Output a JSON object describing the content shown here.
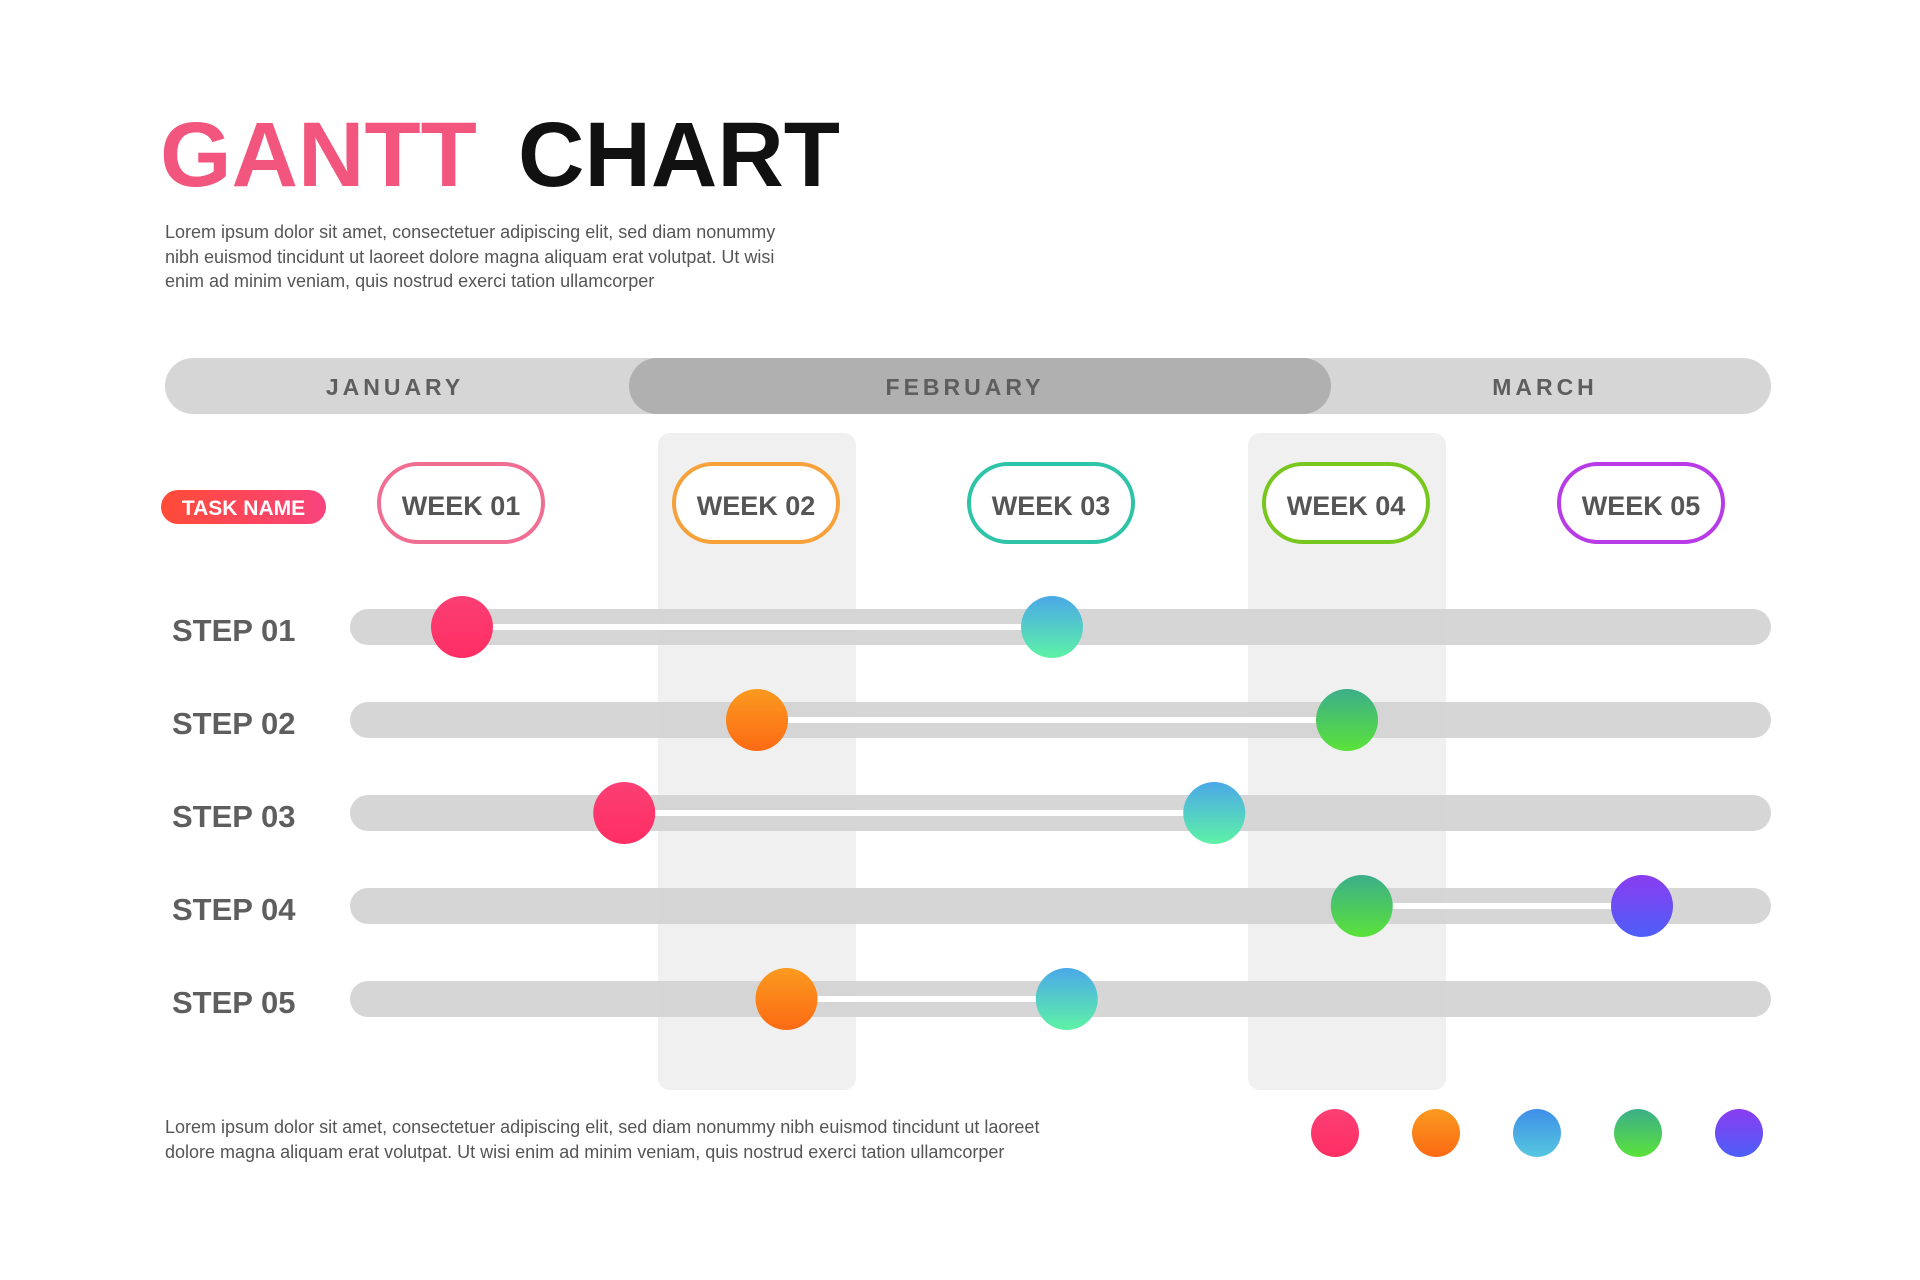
{
  "title": {
    "part1": "GANTT",
    "part2": "CHART"
  },
  "intro_text": [
    "Lorem ipsum dolor sit amet, consectetuer adipiscing elit, sed diam nonummy",
    "nibh euismod tincidunt ut laoreet dolore magna aliquam erat volutpat. Ut wisi",
    "enim ad minim veniam, quis nostrud exerci tation ullamcorper"
  ],
  "footer_text": [
    "Lorem ipsum dolor sit amet, consectetuer adipiscing elit, sed diam nonummy nibh euismod tincidunt ut laoreet",
    "dolore magna aliquam erat volutpat. Ut wisi enim ad minim veniam, quis nostrud exerci tation ullamcorper"
  ],
  "task_badge": "TASK NAME",
  "colors": {
    "title_accent": "#f2557d",
    "title_dark": "#111111",
    "body_text": "#555555",
    "track": "#d3d3d3",
    "month_bar": "#d6d6d6",
    "month_active": "#b0b0b0",
    "week_highlight": "#f0f0f0",
    "legend": [
      "#fb3f74",
      "#fb8a17",
      "#48a9e6",
      "#47d34a",
      "#6b4df8"
    ]
  },
  "chart_data": {
    "type": "gantt",
    "months": [
      {
        "label": "JANUARY",
        "active": false
      },
      {
        "label": "FEBRUARY",
        "active": true
      },
      {
        "label": "MARCH",
        "active": false
      }
    ],
    "weeks": [
      {
        "label": "WEEK 01",
        "color": "#f06e92",
        "highlight": false
      },
      {
        "label": "WEEK 02",
        "color": "#f7a13a",
        "highlight": true
      },
      {
        "label": "WEEK 03",
        "color": "#2fc4a8",
        "highlight": false
      },
      {
        "label": "WEEK 04",
        "color": "#78c71f",
        "highlight": true
      },
      {
        "label": "WEEK 05",
        "color": "#b73be6",
        "highlight": false
      }
    ],
    "tasks": [
      {
        "label": "STEP 01",
        "start": 1.0,
        "end": 3.0,
        "start_dot": "pink",
        "end_dot": "teal"
      },
      {
        "label": "STEP 02",
        "start": 2.0,
        "end": 4.0,
        "start_dot": "orange",
        "end_dot": "green"
      },
      {
        "label": "STEP 03",
        "start": 1.55,
        "end": 3.55,
        "start_dot": "pink",
        "end_dot": "teal"
      },
      {
        "label": "STEP 04",
        "start": 4.05,
        "end": 5.0,
        "start_dot": "green",
        "end_dot": "violet"
      },
      {
        "label": "STEP 05",
        "start": 2.1,
        "end": 3.05,
        "start_dot": "orange",
        "end_dot": "teal"
      }
    ],
    "legend_dots": [
      "pink",
      "orange",
      "blue",
      "green",
      "violet"
    ]
  }
}
